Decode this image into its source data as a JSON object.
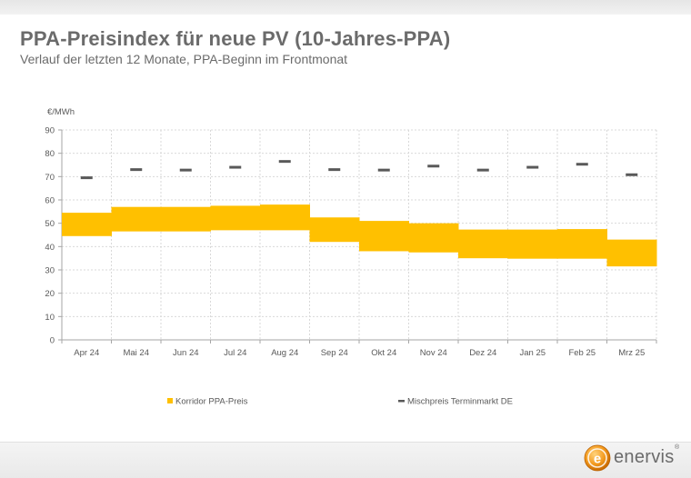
{
  "page": {
    "title": "PPA-Preisindex für neue PV (10-Jahres-PPA)",
    "subtitle": "Verlauf der letzten 12 Monate, PPA-Beginn im Frontmonat"
  },
  "logo": {
    "glyph": "e",
    "text": "enervis",
    "reg": "®"
  },
  "chart_data": {
    "type": "bar",
    "unit_label": "€/MWh",
    "categories": [
      "Apr 24",
      "Mai 24",
      "Jun 24",
      "Jul 24",
      "Aug 24",
      "Sep 24",
      "Okt 24",
      "Nov 24",
      "Dez 24",
      "Jan 25",
      "Feb 25",
      "Mrz 25"
    ],
    "ylim": [
      0,
      90
    ],
    "yticks": [
      0,
      10,
      20,
      30,
      40,
      50,
      60,
      70,
      80,
      90
    ],
    "grid": true,
    "legend_position": "bottom",
    "series": [
      {
        "name": "Korridor PPA-Preis",
        "kind": "range",
        "color": "#ffc000",
        "low": [
          44.5,
          46.5,
          46.5,
          47,
          47,
          42,
          38,
          37.5,
          35,
          34.8,
          34.8,
          31.5
        ],
        "high": [
          54.5,
          57,
          57,
          57.5,
          58,
          52.5,
          51,
          50,
          47.3,
          47.3,
          47.5,
          43
        ]
      },
      {
        "name": "Mischpreis Terminmarkt DE",
        "kind": "marker",
        "color": "#595959",
        "values": [
          69.5,
          73,
          72.8,
          74,
          76.5,
          73,
          72.8,
          74.5,
          72.8,
          74,
          75.3,
          70.8
        ]
      }
    ]
  }
}
